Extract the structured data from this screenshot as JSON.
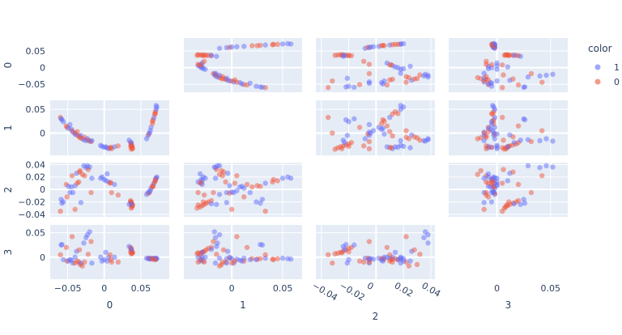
{
  "chart_data": {
    "type": "scatter",
    "subtype": "scatter-matrix",
    "dimensions": [
      "0",
      "1",
      "2",
      "3"
    ],
    "ranges": [
      [
        -0.074,
        0.089
      ],
      [
        -0.047,
        0.069
      ],
      [
        -0.044,
        0.043
      ],
      [
        -0.045,
        0.066
      ]
    ],
    "ticks": [
      {
        "values": [
          -0.05,
          0,
          0.05
        ],
        "labels": [
          "−0.05",
          "0",
          "0.05"
        ]
      },
      {
        "values": [
          0,
          0.05
        ],
        "labels": [
          "0",
          "0.05"
        ]
      },
      {
        "values": [
          -0.04,
          -0.02,
          0,
          0.02,
          0.04
        ],
        "labels": [
          "−0.04",
          "−0.02",
          "0",
          "0.02",
          "0.04"
        ]
      },
      {
        "values": [
          0,
          0.05
        ],
        "labels": [
          "0",
          "0.05"
        ]
      }
    ],
    "diagonal_visible": false,
    "grid": true,
    "legend": {
      "title": "color",
      "placement": "top-right",
      "entries": [
        {
          "name": "1",
          "color": "#636efa"
        },
        {
          "name": "0",
          "color": "#EF553B"
        }
      ]
    },
    "point_fields": [
      "0",
      "1",
      "2",
      "3",
      "color"
    ],
    "points": [
      [
        0.058,
        -0.012,
        -0.008,
        -0.002,
        "1"
      ],
      [
        0.06,
        -0.005,
        -0.005,
        -0.003,
        "1"
      ],
      [
        0.061,
        -0.002,
        -0.006,
        -0.002,
        "0"
      ],
      [
        0.062,
        0.0,
        -0.004,
        -0.003,
        "1"
      ],
      [
        0.063,
        0.005,
        -0.002,
        -0.004,
        "1"
      ],
      [
        0.064,
        0.012,
        0.002,
        -0.002,
        "1"
      ],
      [
        0.066,
        0.02,
        0.004,
        -0.003,
        "0"
      ],
      [
        0.066,
        0.025,
        0.006,
        -0.004,
        "0"
      ],
      [
        0.067,
        0.028,
        0.005,
        -0.003,
        "0"
      ],
      [
        0.068,
        0.033,
        0.01,
        -0.002,
        "1"
      ],
      [
        0.069,
        0.04,
        0.012,
        -0.004,
        "0"
      ],
      [
        0.07,
        0.045,
        0.014,
        -0.003,
        "0"
      ],
      [
        0.071,
        0.05,
        0.018,
        -0.002,
        "1"
      ],
      [
        0.072,
        0.055,
        0.02,
        -0.003,
        "1"
      ],
      [
        0.071,
        0.058,
        0.018,
        -0.004,
        "1"
      ],
      [
        0.07,
        0.041,
        0.016,
        -0.005,
        "0"
      ],
      [
        0.036,
        -0.02,
        -0.018,
        0.02,
        "0"
      ],
      [
        0.037,
        -0.023,
        -0.02,
        0.018,
        "0"
      ],
      [
        0.037,
        -0.025,
        -0.022,
        0.015,
        "0"
      ],
      [
        0.038,
        -0.027,
        -0.024,
        0.012,
        "0"
      ],
      [
        0.038,
        -0.029,
        -0.026,
        0.01,
        "0"
      ],
      [
        0.038,
        -0.031,
        -0.028,
        0.008,
        "0"
      ],
      [
        0.039,
        -0.033,
        -0.025,
        0.009,
        "0"
      ],
      [
        0.037,
        -0.034,
        -0.03,
        0.007,
        "0"
      ],
      [
        0.034,
        -0.015,
        -0.024,
        0.022,
        "1"
      ],
      [
        0.036,
        -0.028,
        -0.02,
        0.011,
        "0"
      ],
      [
        -0.06,
        0.033,
        -0.035,
        0.005,
        "0"
      ],
      [
        -0.059,
        0.03,
        -0.016,
        0.025,
        "1"
      ],
      [
        -0.058,
        0.028,
        -0.022,
        0.026,
        "1"
      ],
      [
        -0.056,
        0.024,
        -0.02,
        -0.005,
        "1"
      ],
      [
        -0.052,
        0.015,
        0.008,
        0.02,
        "0"
      ],
      [
        -0.051,
        0.012,
        -0.012,
        -0.008,
        "0"
      ],
      [
        -0.049,
        0.01,
        0.005,
        -0.008,
        "1"
      ],
      [
        -0.047,
        0.018,
        -0.005,
        -0.005,
        "1"
      ],
      [
        -0.045,
        0.008,
        0.004,
        -0.006,
        "1"
      ],
      [
        -0.044,
        0.005,
        0.022,
        0.042,
        "0"
      ],
      [
        -0.043,
        0.002,
        -0.005,
        -0.012,
        "1"
      ],
      [
        -0.04,
        -0.002,
        0.006,
        0.0,
        "1"
      ],
      [
        -0.04,
        0.0,
        -0.032,
        -0.012,
        "0"
      ],
      [
        -0.038,
        -0.004,
        0.026,
        0.012,
        "1"
      ],
      [
        -0.037,
        0.003,
        0.01,
        -0.008,
        "0"
      ],
      [
        -0.035,
        -0.006,
        0.012,
        -0.01,
        "0"
      ],
      [
        -0.034,
        -0.008,
        0.028,
        0.015,
        "0"
      ],
      [
        -0.033,
        -0.01,
        0.03,
        -0.015,
        "0"
      ],
      [
        -0.032,
        -0.005,
        -0.021,
        -0.012,
        "1"
      ],
      [
        -0.03,
        -0.012,
        0.024,
        -0.018,
        "0"
      ],
      [
        -0.028,
        -0.014,
        0.038,
        0.029,
        "1"
      ],
      [
        -0.027,
        -0.009,
        0.022,
        -0.01,
        "0"
      ],
      [
        -0.025,
        -0.016,
        0.035,
        0.04,
        "1"
      ],
      [
        -0.023,
        -0.012,
        0.038,
        0.046,
        "1"
      ],
      [
        -0.022,
        -0.015,
        0.032,
        0.006,
        "0"
      ],
      [
        -0.02,
        -0.017,
        0.036,
        0.052,
        "1"
      ],
      [
        -0.018,
        -0.018,
        -0.005,
        0.032,
        "0"
      ],
      [
        -0.017,
        -0.016,
        0.018,
        -0.012,
        "1"
      ],
      [
        -0.005,
        -0.026,
        0.018,
        0.0,
        "1"
      ],
      [
        -0.003,
        -0.028,
        0.02,
        -0.008,
        "1"
      ],
      [
        0.0,
        -0.03,
        0.016,
        -0.005,
        "1"
      ],
      [
        0.002,
        -0.029,
        0.014,
        0.01,
        "1"
      ],
      [
        0.004,
        -0.031,
        0.025,
        -0.008,
        "1"
      ],
      [
        0.006,
        -0.033,
        0.012,
        0.0,
        "1"
      ],
      [
        0.008,
        -0.031,
        0.01,
        0.005,
        "0"
      ],
      [
        0.009,
        -0.03,
        0.011,
        -0.005,
        "0"
      ],
      [
        0.01,
        -0.033,
        -0.005,
        -0.01,
        "0"
      ],
      [
        0.014,
        -0.029,
        0.008,
        0.0,
        "1"
      ],
      [
        0.019,
        -0.027,
        -0.009,
        -0.01,
        "0"
      ],
      [
        0.037,
        -0.02,
        -0.023,
        0.016,
        "1"
      ]
    ]
  }
}
